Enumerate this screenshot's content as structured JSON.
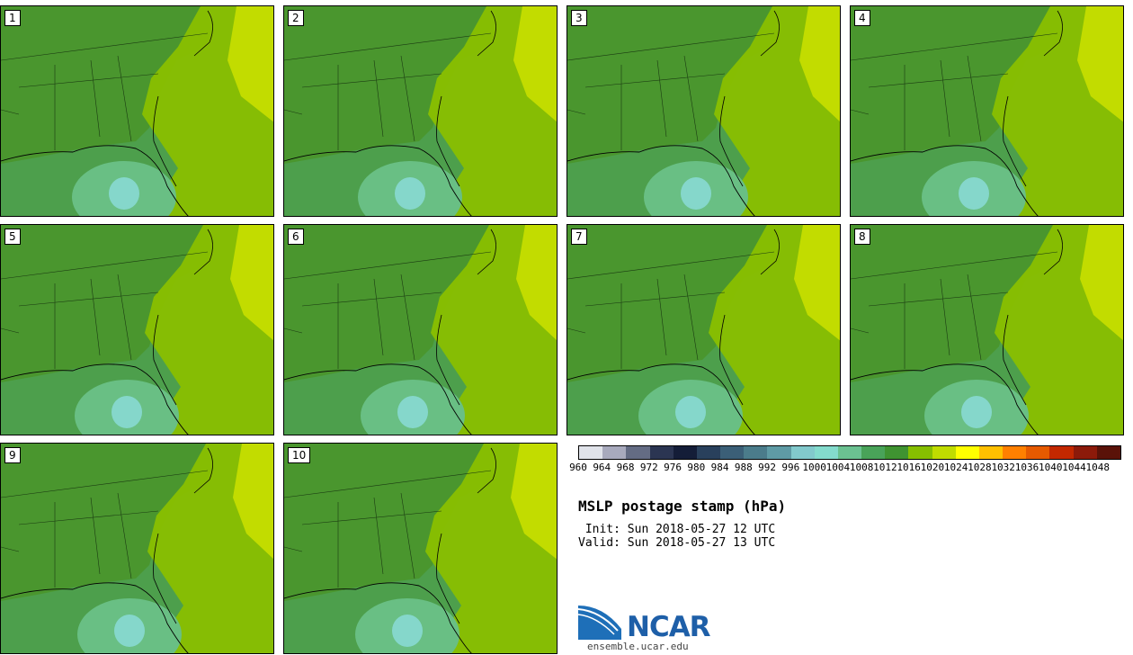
{
  "title": "MSLP postage stamp (hPa)",
  "init": " Init: Sun 2018-05-27 12 UTC",
  "valid": "Valid: Sun 2018-05-27 13 UTC",
  "logo": {
    "name": "NCAR",
    "url": "ensemble.ucar.edu"
  },
  "members": [
    "1",
    "2",
    "3",
    "4",
    "5",
    "6",
    "7",
    "8",
    "9",
    "10"
  ],
  "colorbar": {
    "ticks": [
      "960",
      "964",
      "968",
      "972",
      "976",
      "980",
      "984",
      "988",
      "992",
      "996",
      "1000",
      "1004",
      "1008",
      "1012",
      "1016",
      "1020",
      "1024",
      "1028",
      "1032",
      "1036",
      "1040",
      "1044",
      "1048"
    ],
    "colors": [
      "#e0e3ea",
      "#a8aabd",
      "#646c84",
      "#2b3552",
      "#141d38",
      "#29405c",
      "#3b5f77",
      "#4b7c8b",
      "#5f9ba5",
      "#82c9cc",
      "#84dbcd",
      "#6bc191",
      "#49a359",
      "#3f9331",
      "#86bf00",
      "#c0dc00",
      "#ffff00",
      "#ffc000",
      "#ff8000",
      "#e65a00",
      "#c32800",
      "#8c1a0a",
      "#5a1208"
    ]
  },
  "fill_colors": {
    "land": "#4a962e",
    "ocean_mid": "#4d9f4c",
    "low_outer": "#69bf84",
    "low_inner": "#85d7cb",
    "high_mid": "#89bf00",
    "high_outer": "#c2dc00"
  }
}
